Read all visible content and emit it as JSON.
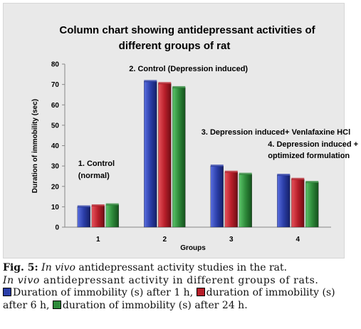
{
  "chart_data": {
    "type": "bar",
    "title_lines": [
      "Column chart showing antidepressant activities of",
      "different groups of rat"
    ],
    "xlabel": "Groups",
    "ylabel": "Duration of immobility (sec)",
    "ylim": [
      0,
      80
    ],
    "yticks": [
      "0",
      "10",
      "20",
      "30",
      "40",
      "50",
      "60",
      "70",
      "80"
    ],
    "categories": [
      "1",
      "2",
      "3",
      "4"
    ],
    "series": [
      {
        "name": "Duration of immobility (s) after 1 h",
        "color": "#2b3ea8",
        "values": [
          10,
          71.5,
          30,
          25.5
        ]
      },
      {
        "name": "duration of immobility (s) after 6 h",
        "color": "#b81f2a",
        "values": [
          10.5,
          70.5,
          27,
          23.5
        ]
      },
      {
        "name": "duration of immobility (s) after 24 h",
        "color": "#2e8a3a",
        "values": [
          11,
          68.5,
          26,
          22
        ]
      }
    ],
    "annotations": [
      {
        "group": "1",
        "lines": [
          "1. Control",
          "(normal)"
        ]
      },
      {
        "group": "2",
        "lines": [
          "2. Control (Depression induced)"
        ]
      },
      {
        "group": "3",
        "lines": [
          "3. Depression induced+ Venlafaxine HCl"
        ]
      },
      {
        "group": "4",
        "lines": [
          "4. Depression induced +",
          "optimized formulation"
        ]
      }
    ],
    "grid": false,
    "legend": "caption"
  },
  "caption": {
    "fig_label": "Fig. 5:",
    "line1_italic": "In vivo",
    "line1_rest": "antidepressant activity studies in the rat.",
    "line2_italic": "In vivo",
    "line2_rest": "antidepressant activity in different groups of rats.",
    "legend_1": "Duration of immobility (s) after 1 h,",
    "legend_2": "duration of immobility (s)",
    "legend_3": "after 6 h,",
    "legend_4": "duration of immobility (s) after 24 h."
  }
}
